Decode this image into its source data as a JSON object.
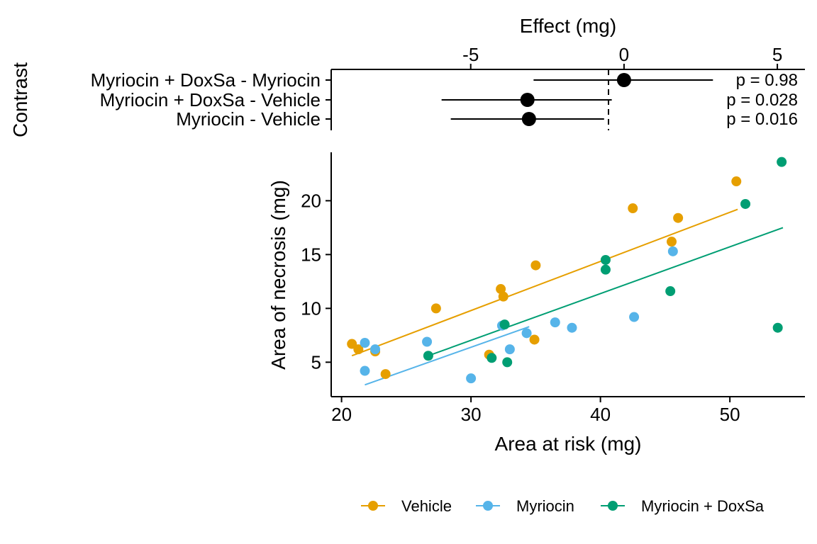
{
  "chart_data": [
    {
      "type": "forest",
      "xlabel": "Effect (mg)",
      "ylabel": "Contrast",
      "xlim": [
        -9.55,
        5.9
      ],
      "xticks": [
        "-5",
        "0",
        "5"
      ],
      "reference_line": 0,
      "contrasts": [
        {
          "label": "Myriocin + DoxSa - Myriocin",
          "estimate": 0.0,
          "lower": -2.95,
          "upper": 2.9,
          "p_label": "p =  0.98"
        },
        {
          "label": "Myriocin + DoxSa - Vehicle",
          "estimate": -3.15,
          "lower": -5.95,
          "upper": -0.4,
          "p_label": "p =  0.028"
        },
        {
          "label": "Myriocin - Vehicle",
          "estimate": -3.1,
          "lower": -5.65,
          "upper": -0.65,
          "p_label": "p =  0.016"
        }
      ]
    },
    {
      "type": "scatter",
      "xlabel": "Area at risk (mg)",
      "ylabel": "Area of necrosis (mg)",
      "xlim": [
        19.2,
        55.8
      ],
      "ylim": [
        1.8,
        24.5
      ],
      "xticks": [
        "20",
        "30",
        "40",
        "50"
      ],
      "yticks": [
        "5",
        "10",
        "15",
        "20"
      ],
      "legend_position": "bottom",
      "series": [
        {
          "name": "Vehicle",
          "color": "#E69F00",
          "points": [
            [
              20.8,
              6.7
            ],
            [
              21.3,
              6.2
            ],
            [
              22.6,
              6.0
            ],
            [
              23.4,
              3.9
            ],
            [
              27.3,
              10.0
            ],
            [
              31.4,
              5.7
            ],
            [
              32.3,
              11.8
            ],
            [
              32.5,
              11.1
            ],
            [
              35.0,
              14.0
            ],
            [
              34.9,
              7.1
            ],
            [
              42.5,
              19.3
            ],
            [
              45.5,
              16.2
            ],
            [
              46.0,
              18.4
            ],
            [
              50.5,
              21.8
            ]
          ],
          "fit": [
            [
              20.8,
              5.6
            ],
            [
              50.6,
              19.2
            ]
          ]
        },
        {
          "name": "Myriocin",
          "color": "#56B4E9",
          "points": [
            [
              21.8,
              6.8
            ],
            [
              22.6,
              6.2
            ],
            [
              21.8,
              4.2
            ],
            [
              26.6,
              6.9
            ],
            [
              30.0,
              3.5
            ],
            [
              32.4,
              8.4
            ],
            [
              33.0,
              6.2
            ],
            [
              34.3,
              7.7
            ],
            [
              36.5,
              8.7
            ],
            [
              37.8,
              8.2
            ],
            [
              42.6,
              9.2
            ],
            [
              45.6,
              15.3
            ]
          ],
          "fit": [
            [
              21.8,
              2.9
            ],
            [
              34.5,
              8.3
            ]
          ]
        },
        {
          "name": "Myriocin + DoxSa",
          "color": "#009E73",
          "points": [
            [
              26.7,
              5.6
            ],
            [
              31.6,
              5.4
            ],
            [
              32.6,
              8.5
            ],
            [
              32.8,
              5.0
            ],
            [
              40.4,
              14.5
            ],
            [
              40.4,
              13.6
            ],
            [
              45.4,
              11.6
            ],
            [
              51.2,
              19.7
            ],
            [
              53.7,
              8.2
            ],
            [
              54.0,
              23.6
            ]
          ],
          "fit": [
            [
              26.7,
              5.6
            ],
            [
              54.1,
              17.5
            ]
          ]
        }
      ]
    }
  ]
}
